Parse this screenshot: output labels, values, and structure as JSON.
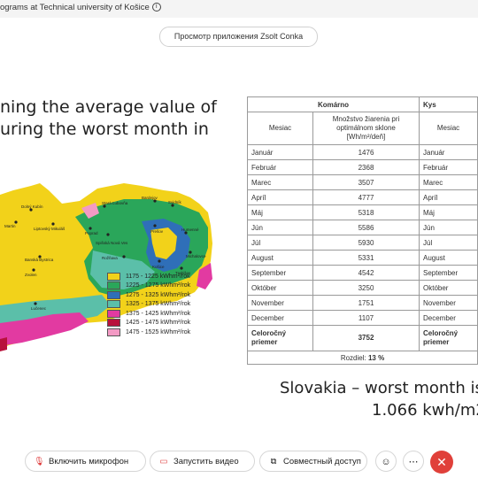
{
  "window": {
    "title": "ograms at Technical university of Košice",
    "info_icon": "info-icon"
  },
  "preview_label": "Просмотр приложения Zsolt Conka",
  "slide": {
    "heading_line1": "ning the average value of",
    "heading_line2": "uring the worst month in",
    "footer_line1": "Slovakia – worst month is I",
    "footer_line2": "1.066 kwh/m2"
  },
  "map": {
    "cities": [
      "Dolný Kubín",
      "Liptovský Mikuláš",
      "Stará Ľubovňa",
      "Bardejov",
      "Svidník",
      "Martin",
      "Poprad",
      "Spišská Nová Ves",
      "Prešov",
      "Humenné",
      "Banská Bystrica",
      "Rožňava",
      "Košice",
      "Michalovce",
      "Zvolen",
      "Trebišov",
      "Lučenec"
    ],
    "legend": [
      {
        "label": "1175 - 1225 kWhm²/rok",
        "color": "#f2d21a"
      },
      {
        "label": "1225 - 1275 kWhm²/rok",
        "color": "#2aa65a"
      },
      {
        "label": "1275 - 1325 kWhm²/rok",
        "color": "#2f6fb8"
      },
      {
        "label": "1325 - 1375 kWhm²/rok",
        "color": "#5bbfa9"
      },
      {
        "label": "1375 - 1425 kWhm²/rok",
        "color": "#e23aa1"
      },
      {
        "label": "1425 - 1475 kWhm²/rok",
        "color": "#b8123c"
      },
      {
        "label": "1475 - 1525 kWhm²/rok",
        "color": "#f39ac4"
      }
    ]
  },
  "table": {
    "header_left": "Komárno",
    "header_right": "Kys",
    "col_month": "Mesiac",
    "col_value": "Množstvo žiarenia pri optimálnom sklone [Wh/m²/deň]",
    "rows": [
      {
        "month": "Január",
        "value": "1476",
        "month2": "Január"
      },
      {
        "month": "Február",
        "value": "2368",
        "month2": "Február"
      },
      {
        "month": "Marec",
        "value": "3507",
        "month2": "Marec"
      },
      {
        "month": "Apríl",
        "value": "4777",
        "month2": "Apríl"
      },
      {
        "month": "Máj",
        "value": "5318",
        "month2": "Máj"
      },
      {
        "month": "Jún",
        "value": "5586",
        "month2": "Jún"
      },
      {
        "month": "Júl",
        "value": "5930",
        "month2": "Júl"
      },
      {
        "month": "August",
        "value": "5331",
        "month2": "August"
      },
      {
        "month": "September",
        "value": "4542",
        "month2": "September"
      },
      {
        "month": "Október",
        "value": "3250",
        "month2": "Október"
      },
      {
        "month": "November",
        "value": "1751",
        "month2": "November"
      },
      {
        "month": "December",
        "value": "1107",
        "month2": "December"
      }
    ],
    "summary_label": "Celoročný priemer",
    "summary_value": "3752",
    "summary_label2": "Celoročný priemer",
    "diff_label": "Rozdiel:",
    "diff_value": "13 %"
  },
  "toolbar": {
    "mic_label": "Включить микрофон",
    "video_label": "Запустить видео",
    "share_label": "Совместный доступ",
    "mic_icon": "mic-off-icon",
    "video_icon": "video-off-icon",
    "share_icon": "share-screen-icon",
    "reactions_icon": "smiley-icon",
    "more_icon": "more-icon",
    "end_icon": "close-icon"
  }
}
